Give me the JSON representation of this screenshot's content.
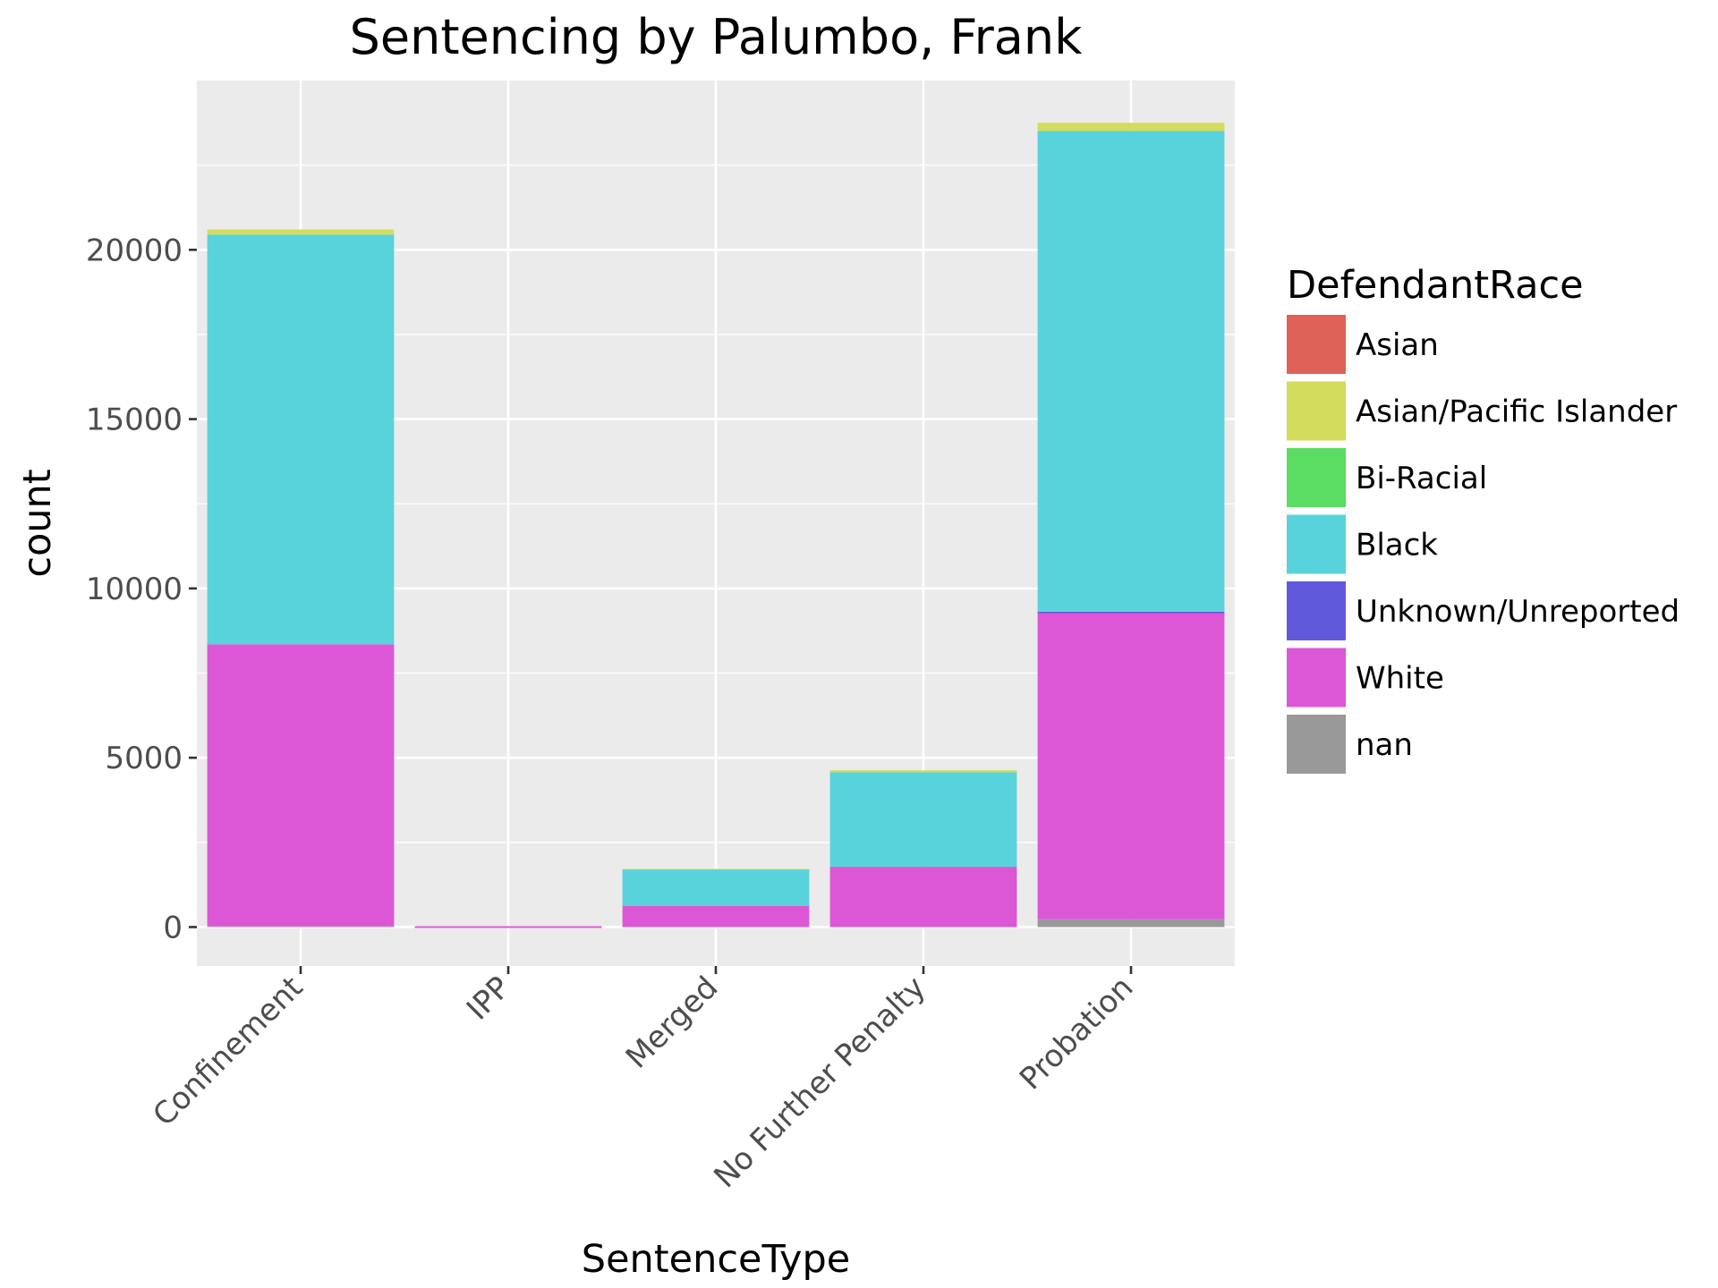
{
  "chart_data": {
    "type": "bar",
    "stacked": true,
    "title": "Sentencing by Palumbo, Frank",
    "xlabel": "SentenceType",
    "ylabel": "count",
    "categories": [
      "Confinement",
      "IPP",
      "Merged",
      "No Further Penalty",
      "Probation"
    ],
    "y_ticks": [
      0,
      5000,
      10000,
      15000,
      20000
    ],
    "y_tick_labels": [
      "0",
      "5000",
      "10000",
      "15000",
      "20000"
    ],
    "ylim": [
      -1150,
      25000
    ],
    "grid": true,
    "legend": {
      "title": "DefendantRace",
      "position": "right"
    },
    "series": [
      {
        "name": "nan",
        "color": "#999999",
        "values": [
          20,
          0,
          0,
          0,
          230
        ]
      },
      {
        "name": "White",
        "color": "#DC57D5",
        "values": [
          8330,
          0,
          620,
          1780,
          9040
        ]
      },
      {
        "name": "Unknown/Unreported",
        "color": "#6159DC",
        "values": [
          0,
          0,
          0,
          0,
          40
        ]
      },
      {
        "name": "Black",
        "color": "#58D3DB",
        "values": [
          12100,
          0,
          1080,
          2790,
          14200
        ]
      },
      {
        "name": "Bi-Racial",
        "color": "#5BDC63",
        "values": [
          0,
          0,
          0,
          0,
          0
        ]
      },
      {
        "name": "Asian/Pacific Islander",
        "color": "#D3DC5B",
        "values": [
          150,
          0,
          20,
          60,
          240
        ]
      },
      {
        "name": "Asian",
        "color": "#DE6258",
        "values": [
          0,
          0,
          0,
          0,
          0
        ]
      }
    ],
    "legend_order": [
      "Asian",
      "Asian/Pacific Islander",
      "Bi-Racial",
      "Black",
      "Unknown/Unreported",
      "White",
      "nan"
    ],
    "colors": {
      "panel": "#EBEBEB",
      "grid": "#FFFFFF"
    }
  }
}
